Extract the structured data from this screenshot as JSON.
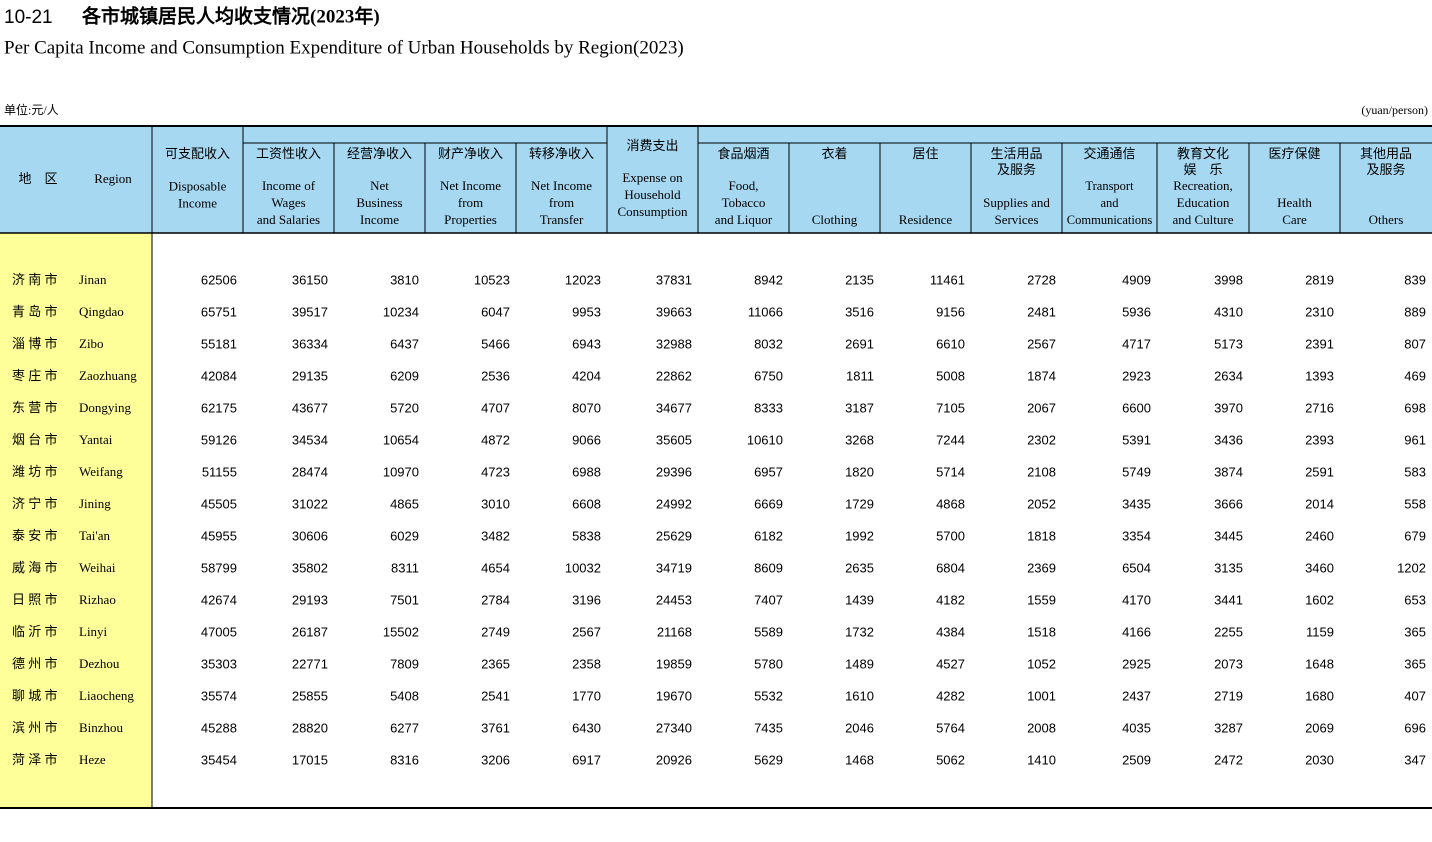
{
  "header": {
    "code": "10-21",
    "title_cn": "各市城镇居民人均收支情况(2023年)",
    "title_en": "Per Capita Income and Consumption Expenditure of  Urban Households by Region(2023)",
    "unit_cn": "单位:元/人",
    "unit_en": "(yuan/person)"
  },
  "table": {
    "region_header": {
      "cn": "地　区",
      "en": "Region"
    },
    "columns": [
      {
        "cn": [
          "可支配收入"
        ],
        "en": [
          "Disposable",
          "Income"
        ]
      },
      {
        "cn": [
          "工资性收入"
        ],
        "en": [
          "Income of",
          "Wages",
          "and Salaries"
        ]
      },
      {
        "cn": [
          "经营净收入"
        ],
        "en": [
          "Net",
          "Business",
          "Income"
        ]
      },
      {
        "cn": [
          "财产净收入"
        ],
        "en": [
          "Net Income",
          "from",
          "Properties"
        ]
      },
      {
        "cn": [
          "转移净收入"
        ],
        "en": [
          "Net Income",
          "from",
          "Transfer"
        ]
      },
      {
        "cn": [
          "消费支出"
        ],
        "en": [
          "Expense on",
          "Household",
          "Consumption"
        ]
      },
      {
        "cn": [
          "食品烟酒"
        ],
        "en": [
          "Food,",
          "Tobacco",
          "and Liquor"
        ]
      },
      {
        "cn": [
          "衣着"
        ],
        "en": [
          "Clothing"
        ]
      },
      {
        "cn": [
          "居住"
        ],
        "en": [
          "Residence"
        ]
      },
      {
        "cn": [
          "生活用品",
          "及服务"
        ],
        "en": [
          "Supplies and",
          "Services"
        ]
      },
      {
        "cn": [
          "交通通信"
        ],
        "en": [
          "Transport",
          "and",
          "Communications"
        ]
      },
      {
        "cn": [
          "教育文化",
          "娱　乐"
        ],
        "en": [
          "Recreation,",
          "Education",
          "and Culture"
        ]
      },
      {
        "cn": [
          "医疗保健"
        ],
        "en": [
          "Health",
          "Care"
        ]
      },
      {
        "cn": [
          "其他用品",
          "及服务"
        ],
        "en": [
          "Others"
        ]
      }
    ],
    "rows": [
      {
        "cn": "济 南 市",
        "en": "Jinan",
        "values": [
          62506,
          36150,
          3810,
          10523,
          12023,
          37831,
          8942,
          2135,
          11461,
          2728,
          4909,
          3998,
          2819,
          839
        ]
      },
      {
        "cn": "青 岛 市",
        "en": "Qingdao",
        "values": [
          65751,
          39517,
          10234,
          6047,
          9953,
          39663,
          11066,
          3516,
          9156,
          2481,
          5936,
          4310,
          2310,
          889
        ]
      },
      {
        "cn": "淄 博 市",
        "en": "Zibo",
        "values": [
          55181,
          36334,
          6437,
          5466,
          6943,
          32988,
          8032,
          2691,
          6610,
          2567,
          4717,
          5173,
          2391,
          807
        ]
      },
      {
        "cn": "枣 庄 市",
        "en": "Zaozhuang",
        "values": [
          42084,
          29135,
          6209,
          2536,
          4204,
          22862,
          6750,
          1811,
          5008,
          1874,
          2923,
          2634,
          1393,
          469
        ]
      },
      {
        "cn": "东 营 市",
        "en": "Dongying",
        "values": [
          62175,
          43677,
          5720,
          4707,
          8070,
          34677,
          8333,
          3187,
          7105,
          2067,
          6600,
          3970,
          2716,
          698
        ]
      },
      {
        "cn": "烟 台 市",
        "en": "Yantai",
        "values": [
          59126,
          34534,
          10654,
          4872,
          9066,
          35605,
          10610,
          3268,
          7244,
          2302,
          5391,
          3436,
          2393,
          961
        ]
      },
      {
        "cn": "潍 坊 市",
        "en": "Weifang",
        "values": [
          51155,
          28474,
          10970,
          4723,
          6988,
          29396,
          6957,
          1820,
          5714,
          2108,
          5749,
          3874,
          2591,
          583
        ]
      },
      {
        "cn": "济 宁 市",
        "en": "Jining",
        "values": [
          45505,
          31022,
          4865,
          3010,
          6608,
          24992,
          6669,
          1729,
          4868,
          2052,
          3435,
          3666,
          2014,
          558
        ]
      },
      {
        "cn": "泰 安 市",
        "en": "Tai'an",
        "values": [
          45955,
          30606,
          6029,
          3482,
          5838,
          25629,
          6182,
          1992,
          5700,
          1818,
          3354,
          3445,
          2460,
          679
        ]
      },
      {
        "cn": "威 海 市",
        "en": "Weihai",
        "values": [
          58799,
          35802,
          8311,
          4654,
          10032,
          34719,
          8609,
          2635,
          6804,
          2369,
          6504,
          3135,
          3460,
          1202
        ]
      },
      {
        "cn": "日 照 市",
        "en": "Rizhao",
        "values": [
          42674,
          29193,
          7501,
          2784,
          3196,
          24453,
          7407,
          1439,
          4182,
          1559,
          4170,
          3441,
          1602,
          653
        ]
      },
      {
        "cn": "临 沂 市",
        "en": "Linyi",
        "values": [
          47005,
          26187,
          15502,
          2749,
          2567,
          21168,
          5589,
          1732,
          4384,
          1518,
          4166,
          2255,
          1159,
          365
        ]
      },
      {
        "cn": "德 州 市",
        "en": "Dezhou",
        "values": [
          35303,
          22771,
          7809,
          2365,
          2358,
          19859,
          5780,
          1489,
          4527,
          1052,
          2925,
          2073,
          1648,
          365
        ]
      },
      {
        "cn": "聊 城 市",
        "en": "Liaocheng",
        "values": [
          35574,
          25855,
          5408,
          2541,
          1770,
          19670,
          5532,
          1610,
          4282,
          1001,
          2437,
          2719,
          1680,
          407
        ]
      },
      {
        "cn": "滨 州 市",
        "en": "Binzhou",
        "values": [
          45288,
          28820,
          6277,
          3761,
          6430,
          27340,
          7435,
          2046,
          5764,
          2008,
          4035,
          3287,
          2069,
          696
        ]
      },
      {
        "cn": "菏 泽 市",
        "en": "Heze",
        "values": [
          35454,
          17015,
          8316,
          3206,
          6917,
          20926,
          5629,
          1468,
          5062,
          1410,
          2509,
          2472,
          2030,
          347
        ]
      }
    ]
  }
}
